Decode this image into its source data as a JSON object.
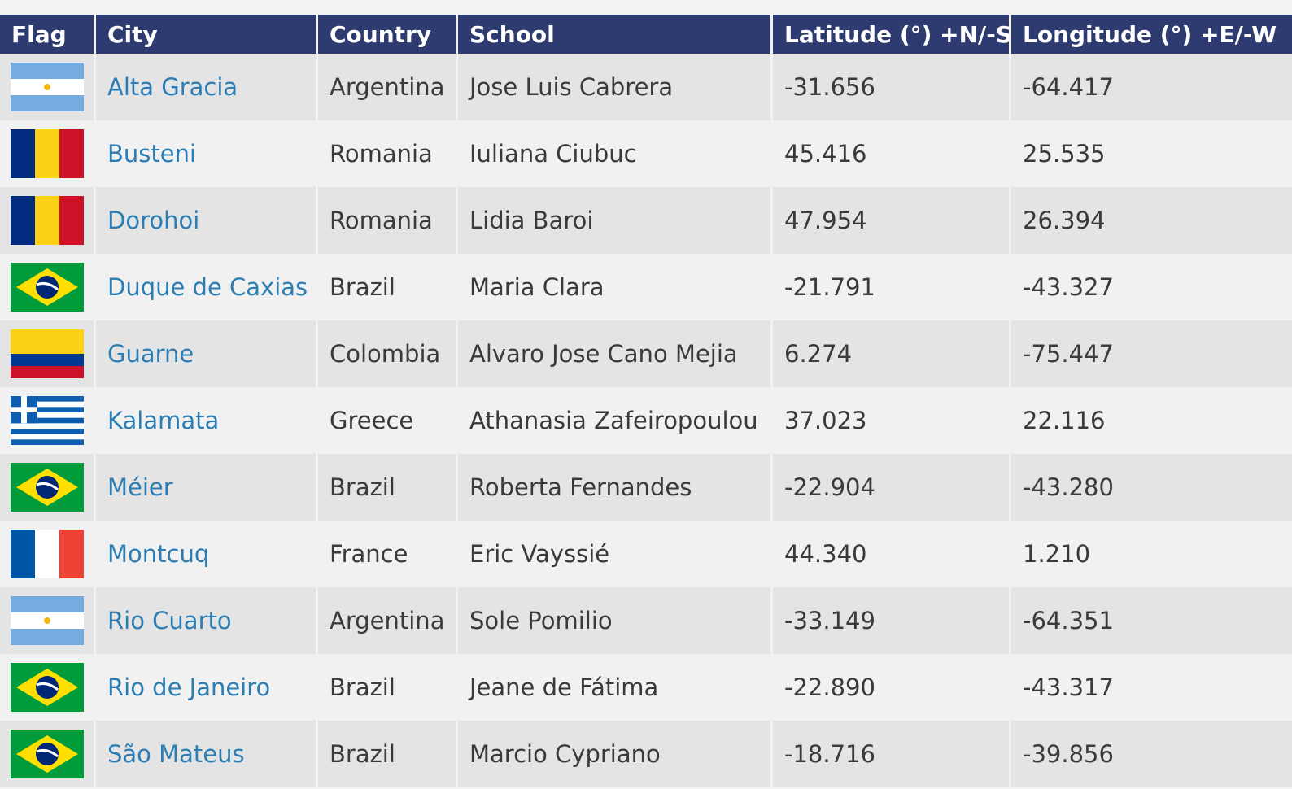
{
  "table": {
    "header": [
      "Flag",
      "City",
      "Country",
      "School",
      "Latitude (°) +N/-S",
      "Longitude (°) +E/-W"
    ],
    "rows": [
      [
        "Alta Gracia",
        "Argentina",
        "Jose Luis Cabrera",
        "-31.656",
        "-64.417"
      ],
      [
        "Busteni",
        "Romania",
        "Iuliana Ciubuc",
        "45.416",
        "25.535"
      ],
      [
        "Dorohoi",
        "Romania",
        "Lidia Baroi",
        "47.954",
        "26.394"
      ],
      [
        "Duque de Caxias",
        "Brazil",
        "Maria Clara",
        "-21.791",
        "-43.327"
      ],
      [
        "Guarne",
        "Colombia",
        "Alvaro Jose Cano Mejia",
        "6.274",
        "-75.447"
      ],
      [
        "Kalamata",
        "Greece",
        "Athanasia Zafeiropoulou",
        "37.023",
        "22.116"
      ],
      [
        "Méier",
        "Brazil",
        "Roberta Fernandes",
        "-22.904",
        "-43.280"
      ],
      [
        "Montcuq",
        "France",
        "Eric Vayssié",
        "44.340",
        "1.210"
      ],
      [
        "Rio Cuarto",
        "Argentina",
        "Sole Pomilio",
        "-33.149",
        "-64.351"
      ],
      [
        "Rio de Janeiro",
        "Brazil",
        "Jeane de Fátima",
        "-22.890",
        "-43.317"
      ],
      [
        "São Mateus",
        "Brazil",
        "Marcio Cypriano",
        "-18.716",
        "-39.856"
      ]
    ]
  }
}
